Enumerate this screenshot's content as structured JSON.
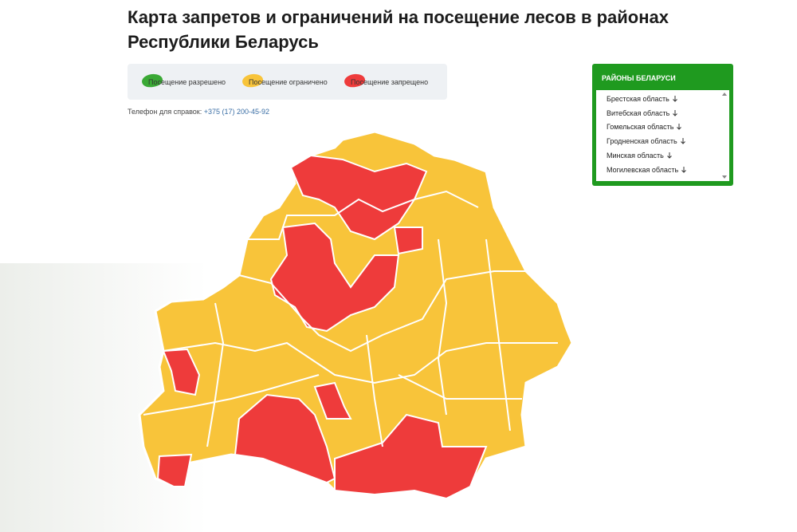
{
  "header": {
    "title": "Карта запретов и ограничений на посещение лесов в районах Республики Беларусь"
  },
  "legend": [
    {
      "label": "Посещение разрешено",
      "color": "#3aa935"
    },
    {
      "label": "Посещение ограничено",
      "color": "#f8c43a"
    },
    {
      "label": "Посещение запрещено",
      "color": "#ee3b3b"
    }
  ],
  "phone": {
    "label": "Телефон для справок:",
    "number": "+375 (17) 200-45-92"
  },
  "panel": {
    "title": "РАЙОНЫ БЕЛАРУСИ",
    "items": [
      "Брестская область",
      "Витебская область",
      "Гомельская область",
      "Гродненская область",
      "Минская область",
      "Могилевская область"
    ]
  }
}
